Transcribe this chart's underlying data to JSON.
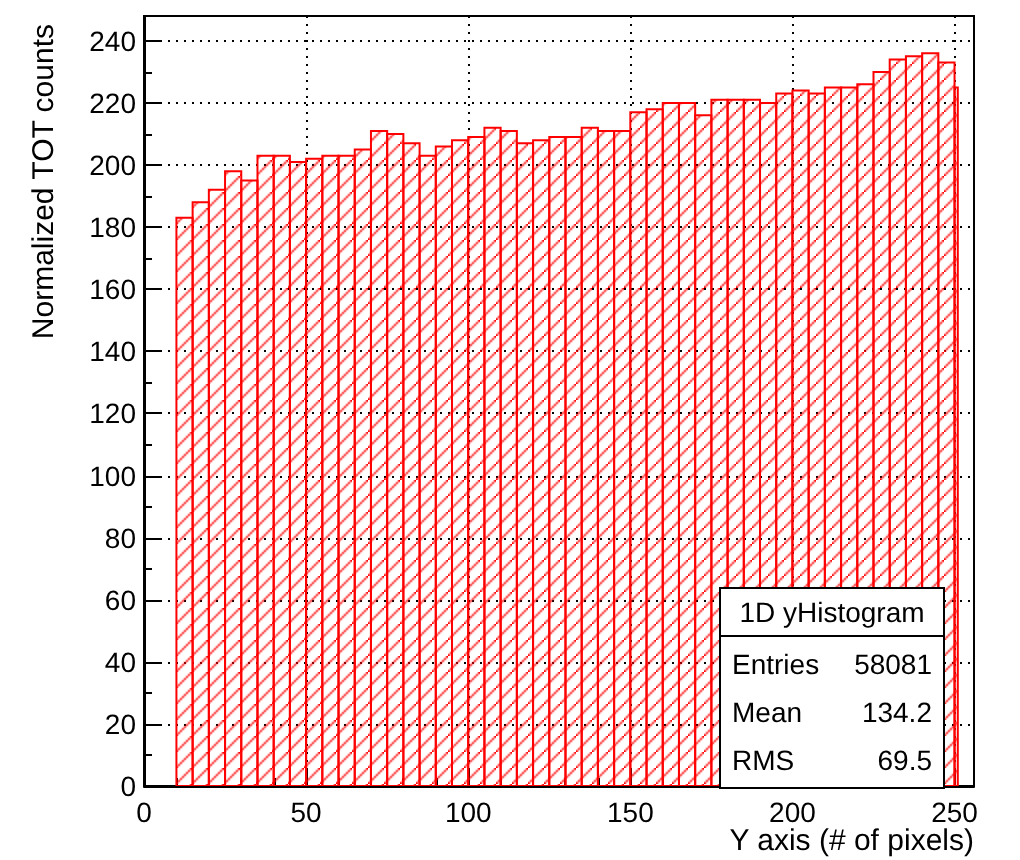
{
  "chart_data": {
    "type": "histogram",
    "xlabel": "Y axis (# of pixels)",
    "ylabel": "Normalized TOT counts",
    "bins": [
      10,
      15,
      20,
      25,
      30,
      35,
      40,
      45,
      50,
      55,
      60,
      65,
      70,
      75,
      80,
      85,
      90,
      95,
      100,
      105,
      110,
      115,
      120,
      125,
      130,
      135,
      140,
      145,
      150,
      155,
      160,
      165,
      170,
      175,
      180,
      185,
      190,
      195,
      200,
      205,
      210,
      215,
      220,
      225,
      230,
      235,
      240,
      245,
      250,
      251
    ],
    "values": [
      183,
      188,
      192,
      198,
      195,
      203,
      203,
      201,
      202,
      203,
      203,
      205,
      211,
      210,
      207,
      203,
      206,
      208,
      209,
      212,
      211,
      207,
      208,
      209,
      209,
      212,
      211,
      211,
      217,
      218,
      220,
      220,
      216,
      221,
      221,
      221,
      220,
      223,
      224,
      223,
      225,
      225,
      226,
      230,
      234,
      235,
      236,
      233,
      225
    ],
    "color": "#ff0000",
    "xlim": [
      0,
      256
    ],
    "xticks": [
      0,
      50,
      100,
      150,
      200,
      250
    ],
    "ylim": [
      0,
      248
    ],
    "yticks": [
      0,
      20,
      40,
      60,
      80,
      100,
      120,
      140,
      160,
      180,
      200,
      220,
      240
    ],
    "grid": true,
    "legend": false,
    "annotations": [
      "1D yHistogram",
      "Entries 58081",
      "Mean 134.2",
      "RMS 69.5"
    ]
  }
}
